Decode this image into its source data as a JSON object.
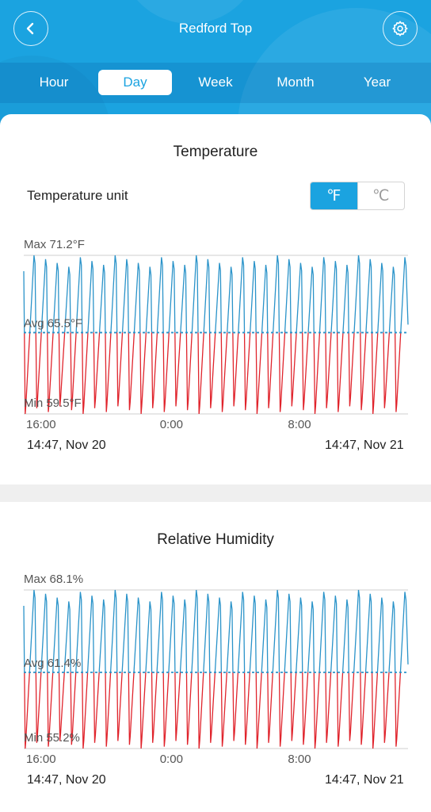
{
  "header": {
    "title": "Redford Top",
    "back_icon": "chevron-left-icon",
    "settings_icon": "gear-icon"
  },
  "tabs": [
    {
      "label": "Hour",
      "active": false
    },
    {
      "label": "Day",
      "active": true
    },
    {
      "label": "Week",
      "active": false
    },
    {
      "label": "Month",
      "active": false
    },
    {
      "label": "Year",
      "active": false
    }
  ],
  "temperature": {
    "title": "Temperature",
    "unit_label": "Temperature unit",
    "unit_options": [
      {
        "label": "℉",
        "active": true
      },
      {
        "label": "℃",
        "active": false
      }
    ]
  },
  "humidity": {
    "title": "Relative Humidity"
  },
  "colors": {
    "accent": "#1ba3e0",
    "above_avg": "#2a93c9",
    "below_avg": "#e0242c"
  },
  "chart_data": [
    {
      "type": "line",
      "title": "Temperature",
      "max_label": "Max 71.2°F",
      "avg_label": "Avg 65.5°F",
      "min_label": "Min 59.5°F",
      "max": 71.2,
      "avg": 65.5,
      "min": 59.5,
      "ylim": [
        59.5,
        71.2
      ],
      "x_ticks": [
        "16:00",
        "0:00",
        "8:00"
      ],
      "x_tick_hours": [
        1.22,
        9.22,
        17.22
      ],
      "x_range_hours": [
        0,
        24
      ],
      "start_label": "14:47,  Nov 20",
      "end_label": "14:47,  Nov 21",
      "cycles": 33,
      "series_note_colors": [
        "#2a93c9",
        "#e0242c"
      ]
    },
    {
      "type": "line",
      "title": "Relative Humidity",
      "max_label": "Max 68.1%",
      "avg_label": "Avg 61.4%",
      "min_label": "Min 55.2%",
      "max": 68.1,
      "avg": 61.4,
      "min": 55.2,
      "ylim": [
        55.2,
        68.1
      ],
      "x_ticks": [
        "16:00",
        "0:00",
        "8:00"
      ],
      "x_tick_hours": [
        1.22,
        9.22,
        17.22
      ],
      "x_range_hours": [
        0,
        24
      ],
      "start_label": "14:47,  Nov 20",
      "end_label": "14:47,  Nov 21",
      "cycles": 33,
      "series_note_colors": [
        "#2a93c9",
        "#e0242c"
      ]
    }
  ]
}
